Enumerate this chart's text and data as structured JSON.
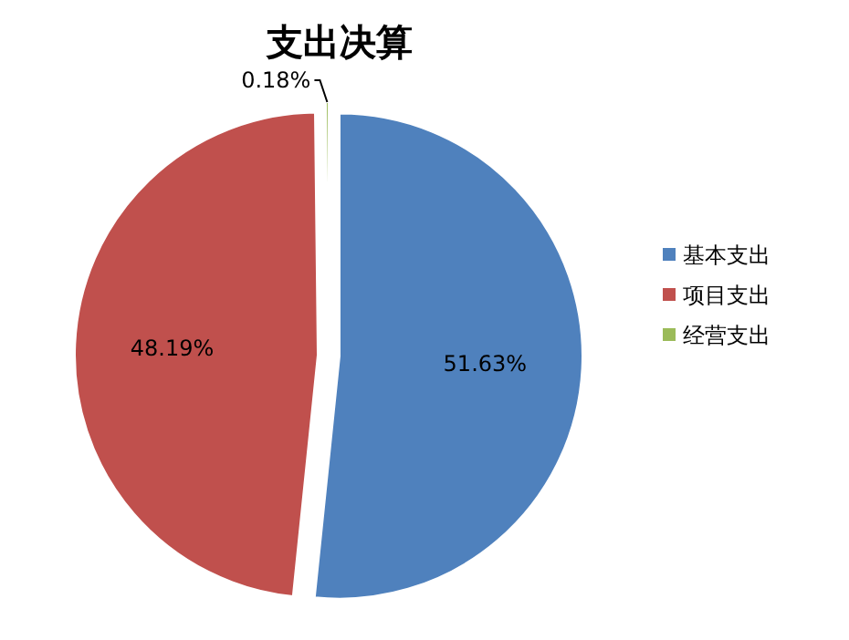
{
  "chart_data": {
    "type": "pie",
    "title": "支出决算",
    "categories": [
      "基本支出",
      "项目支出",
      "经营支出"
    ],
    "values": [
      51.63,
      48.19,
      0.18
    ],
    "colors": [
      "#4f81bd",
      "#c0504d",
      "#9bbb59"
    ],
    "value_labels": [
      "51.63%",
      "48.19%",
      "0.18%"
    ],
    "legend": "right"
  }
}
